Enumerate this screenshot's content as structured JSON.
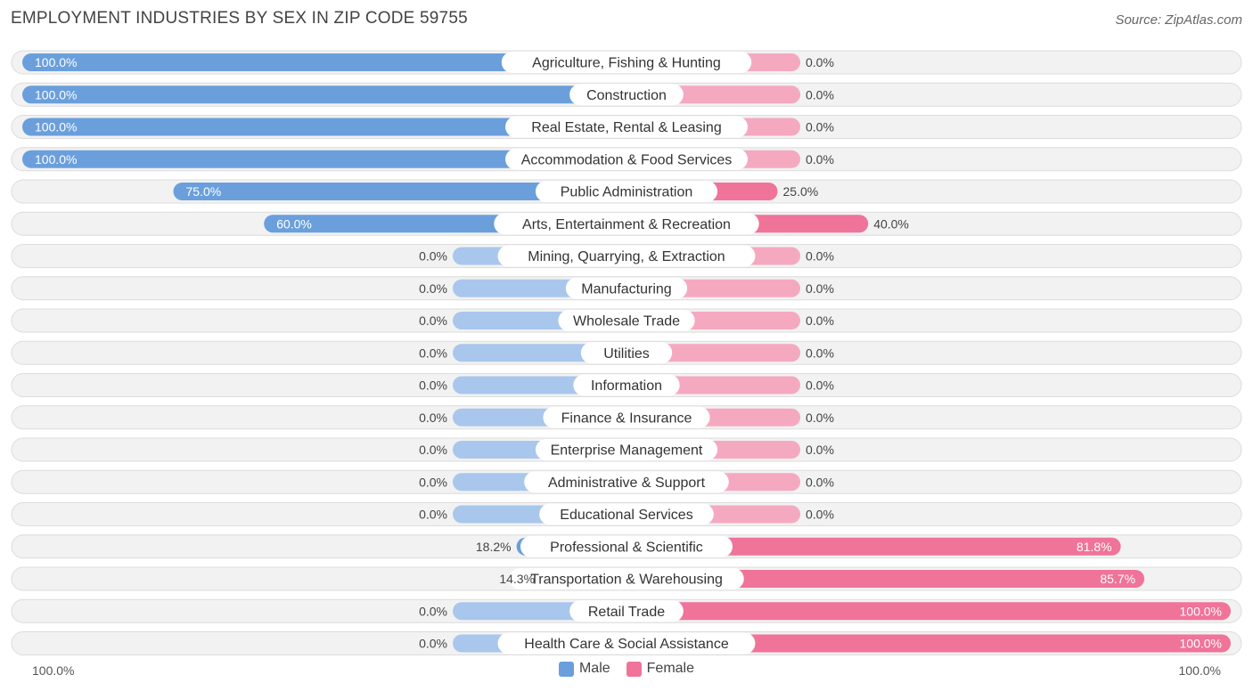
{
  "title": "EMPLOYMENT INDUSTRIES BY SEX IN ZIP CODE 59755",
  "source": "Source: ZipAtlas.com",
  "legend": {
    "male": "Male",
    "female": "Female"
  },
  "axis": {
    "left_label": "100.0%",
    "right_label": "100.0%"
  },
  "colors": {
    "male": "#6a9fdc",
    "male_light": "#a9c7ec",
    "female": "#f07399",
    "female_light": "#f5a9c1"
  },
  "chart_data": {
    "type": "bar",
    "orientation": "horizontal-diverging",
    "series": [
      {
        "name": "Male",
        "values": [
          100.0,
          100.0,
          100.0,
          100.0,
          75.0,
          60.0,
          0.0,
          0.0,
          0.0,
          0.0,
          0.0,
          0.0,
          0.0,
          0.0,
          0.0,
          18.2,
          14.3,
          0.0,
          0.0
        ]
      },
      {
        "name": "Female",
        "values": [
          0.0,
          0.0,
          0.0,
          0.0,
          25.0,
          40.0,
          0.0,
          0.0,
          0.0,
          0.0,
          0.0,
          0.0,
          0.0,
          0.0,
          0.0,
          81.8,
          85.7,
          100.0,
          100.0
        ]
      }
    ],
    "categories": [
      "Agriculture, Fishing & Hunting",
      "Construction",
      "Real Estate, Rental & Leasing",
      "Accommodation & Food Services",
      "Public Administration",
      "Arts, Entertainment & Recreation",
      "Mining, Quarrying, & Extraction",
      "Manufacturing",
      "Wholesale Trade",
      "Utilities",
      "Information",
      "Finance & Insurance",
      "Enterprise Management",
      "Administrative & Support",
      "Educational Services",
      "Professional & Scientific",
      "Transportation & Warehousing",
      "Retail Trade",
      "Health Care & Social Assistance"
    ],
    "male_labels": [
      "100.0%",
      "100.0%",
      "100.0%",
      "100.0%",
      "75.0%",
      "60.0%",
      "0.0%",
      "0.0%",
      "0.0%",
      "0.0%",
      "0.0%",
      "0.0%",
      "0.0%",
      "0.0%",
      "0.0%",
      "18.2%",
      "14.3%",
      "0.0%",
      "0.0%"
    ],
    "female_labels": [
      "0.0%",
      "0.0%",
      "0.0%",
      "0.0%",
      "25.0%",
      "40.0%",
      "0.0%",
      "0.0%",
      "0.0%",
      "0.0%",
      "0.0%",
      "0.0%",
      "0.0%",
      "0.0%",
      "0.0%",
      "81.8%",
      "85.7%",
      "100.0%",
      "100.0%"
    ],
    "xlim": [
      -100,
      100
    ],
    "legend_position": "bottom-center",
    "grid": false
  }
}
